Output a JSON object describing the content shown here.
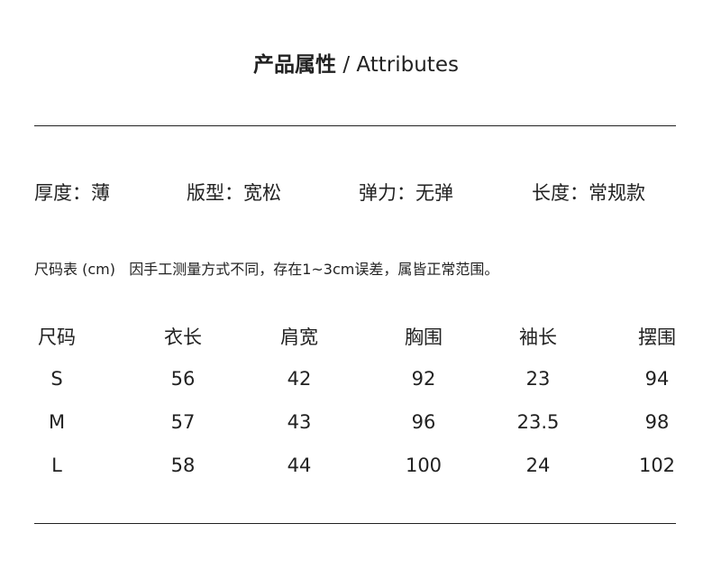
{
  "title": {
    "zh": "产品属性",
    "sep": " / ",
    "en": "Attributes"
  },
  "attributes": [
    {
      "label": "厚度：薄"
    },
    {
      "label": "版型：宽松"
    },
    {
      "label": "弹力：无弹"
    },
    {
      "label": "长度：常规款"
    }
  ],
  "note": "尺码表 (cm)   因手工测量方式不同，存在1~3cm误差，属皆正常范围。",
  "table": {
    "headers": [
      "尺码",
      "衣长",
      "肩宽",
      "胸围",
      "袖长",
      "摆围"
    ],
    "rows": [
      [
        "S",
        "56",
        "42",
        "92",
        "23",
        "94"
      ],
      [
        "M",
        "57",
        "43",
        "96",
        "23.5",
        "98"
      ],
      [
        "L",
        "58",
        "44",
        "100",
        "24",
        "102"
      ]
    ]
  }
}
